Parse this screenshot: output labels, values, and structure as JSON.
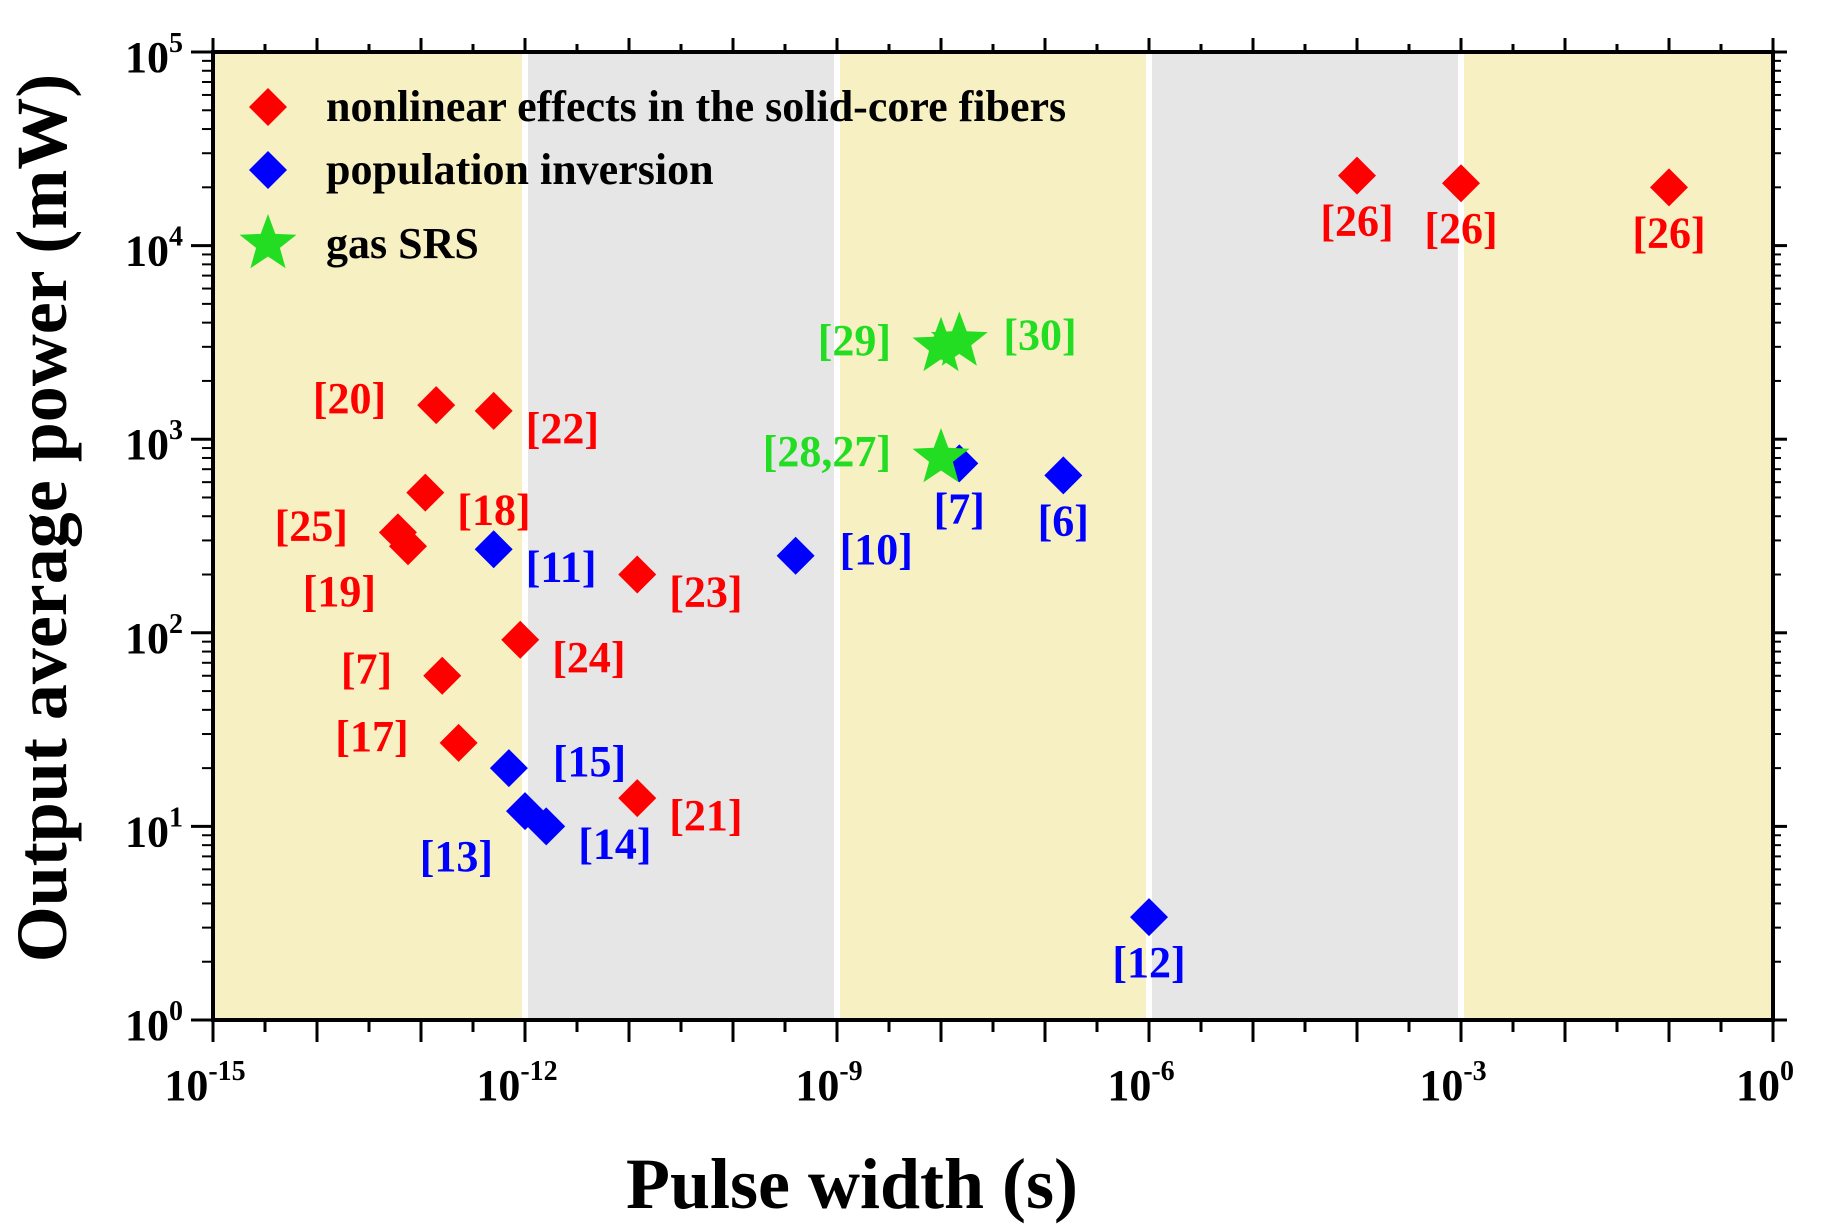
{
  "chart_data": {
    "type": "scatter",
    "title": "",
    "xlabel": "Pulse width (s)",
    "ylabel": "Output average power (mW)",
    "x_scale": "log",
    "y_scale": "log",
    "xlim_exp": [
      -15,
      0
    ],
    "ylim_exp": [
      0,
      5
    ],
    "x_ticks": [
      {
        "base": "10",
        "exp": "-15",
        "value_exp": -15
      },
      {
        "base": "10",
        "exp": "-12",
        "value_exp": -12
      },
      {
        "base": "10",
        "exp": "-9",
        "value_exp": -9
      },
      {
        "base": "10",
        "exp": "-6",
        "value_exp": -6
      },
      {
        "base": "10",
        "exp": "-3",
        "value_exp": -3
      },
      {
        "base": "10",
        "exp": "0",
        "value_exp": 0
      }
    ],
    "y_ticks": [
      {
        "base": "10",
        "exp": "0",
        "value_exp": 0
      },
      {
        "base": "10",
        "exp": "1",
        "value_exp": 1
      },
      {
        "base": "10",
        "exp": "2",
        "value_exp": 2
      },
      {
        "base": "10",
        "exp": "3",
        "value_exp": 3
      },
      {
        "base": "10",
        "exp": "4",
        "value_exp": 4
      },
      {
        "base": "10",
        "exp": "5",
        "value_exp": 5
      }
    ],
    "background_bands": [
      {
        "from_exp": -15,
        "to_exp": -12,
        "color": "#f7f0c2"
      },
      {
        "from_exp": -12,
        "to_exp": -9,
        "color": "#e6e6e6"
      },
      {
        "from_exp": -9,
        "to_exp": -6,
        "color": "#f7f0c2"
      },
      {
        "from_exp": -6,
        "to_exp": -3,
        "color": "#e6e6e6"
      },
      {
        "from_exp": -3,
        "to_exp": 0,
        "color": "#f7f0c2"
      }
    ],
    "legend": {
      "placement": "top-left",
      "entries": [
        {
          "label": "nonlinear effects in the solid-core fibers",
          "marker": "diamond",
          "color": "#ff0000"
        },
        {
          "label": "population inversion",
          "marker": "diamond",
          "color": "#0000ff"
        },
        {
          "label": "gas SRS",
          "marker": "star",
          "color": "#22dd22"
        }
      ]
    },
    "series": [
      {
        "name": "nonlinear effects in the solid-core fibers",
        "marker": "diamond",
        "color": "#ff0000",
        "points": [
          {
            "x": 1.4e-13,
            "y": 1500,
            "label": "[20]",
            "label_pos": "left"
          },
          {
            "x": 5e-13,
            "y": 1400,
            "label": "[22]",
            "label_pos": "below-right"
          },
          {
            "x": 1.1e-13,
            "y": 530,
            "label": "[18]",
            "label_pos": "below-right"
          },
          {
            "x": 6e-14,
            "y": 330,
            "label": "[25]",
            "label_pos": "left"
          },
          {
            "x": 7.5e-14,
            "y": 280,
            "label": "[19]",
            "label_pos": "below-left"
          },
          {
            "x": 1.2e-11,
            "y": 200,
            "label": "[23]",
            "label_pos": "below-right"
          },
          {
            "x": 9e-13,
            "y": 92,
            "label": "[24]",
            "label_pos": "below-right"
          },
          {
            "x": 1.6e-13,
            "y": 60,
            "label": "[7]",
            "label_pos": "left"
          },
          {
            "x": 2.3e-13,
            "y": 27,
            "label": "[17]",
            "label_pos": "left"
          },
          {
            "x": 1.2e-11,
            "y": 14,
            "label": "[21]",
            "label_pos": "below-right"
          },
          {
            "x": 0.0001,
            "y": 23000,
            "label": "[26]",
            "label_pos": "below"
          },
          {
            "x": 0.001,
            "y": 21000,
            "label": "[26]",
            "label_pos": "below"
          },
          {
            "x": 0.1,
            "y": 20000,
            "label": "[26]",
            "label_pos": "below"
          }
        ]
      },
      {
        "name": "population inversion",
        "marker": "diamond",
        "color": "#0000ff",
        "points": [
          {
            "x": 5e-13,
            "y": 270,
            "label": "[11]",
            "label_pos": "below-right"
          },
          {
            "x": 7e-13,
            "y": 20,
            "label": "[15]",
            "label_pos": "right"
          },
          {
            "x": 1e-12,
            "y": 12,
            "label": "[13]",
            "label_pos": "below-left"
          },
          {
            "x": 1.6e-12,
            "y": 10,
            "label": "[14]",
            "label_pos": "below-right"
          },
          {
            "x": 4e-10,
            "y": 250,
            "label": "[10]",
            "label_pos": "right"
          },
          {
            "x": 1.5e-08,
            "y": 750,
            "label": "[7]",
            "label_pos": "below"
          },
          {
            "x": 1.5e-07,
            "y": 650,
            "label": "[6]",
            "label_pos": "below"
          },
          {
            "x": 1e-06,
            "y": 3.4,
            "label": "[12]",
            "label_pos": "below"
          }
        ]
      },
      {
        "name": "gas SRS",
        "marker": "star",
        "color": "#22dd22",
        "points": [
          {
            "x": 1e-08,
            "y": 800,
            "label": "[28,27]",
            "label_pos": "left"
          },
          {
            "x": 1e-08,
            "y": 3000,
            "label": "[29]",
            "label_pos": "left"
          },
          {
            "x": 1.5e-08,
            "y": 3200,
            "label": "[30]",
            "label_pos": "right"
          }
        ]
      }
    ]
  }
}
